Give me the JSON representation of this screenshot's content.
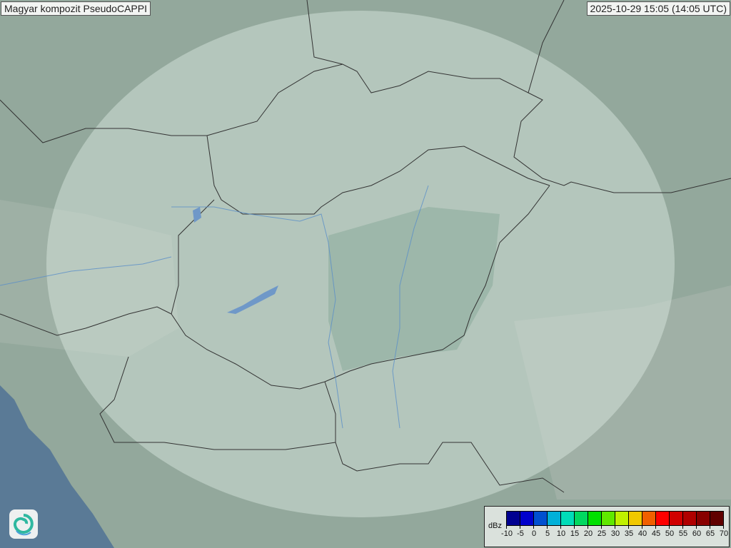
{
  "header": {
    "title": "Magyar kompozit  PseudoCAPPI",
    "timestamp": "2025-10-29 15:05 (14:05 UTC)"
  },
  "logo": {
    "icon": "swirl-logo-icon"
  },
  "legend": {
    "unit": "dBz",
    "ticks": [
      "-10",
      "-5",
      "0",
      "5",
      "10",
      "15",
      "20",
      "25",
      "30",
      "35",
      "40",
      "45",
      "50",
      "55",
      "60",
      "65",
      "70"
    ],
    "colors": [
      "#000090",
      "#0000cc",
      "#0050d0",
      "#00b0d8",
      "#00dcb8",
      "#00d860",
      "#00e000",
      "#60e800",
      "#c0f000",
      "#f0c800",
      "#f06000",
      "#ff0000",
      "#d00000",
      "#b00000",
      "#880000",
      "#600000"
    ]
  },
  "map": {
    "land_color": "#93a89c",
    "coverage_color": "#c8d8d0",
    "sea_color": "#5a7a96",
    "border_color": "#333333",
    "river_color": "#5a8ec8"
  }
}
